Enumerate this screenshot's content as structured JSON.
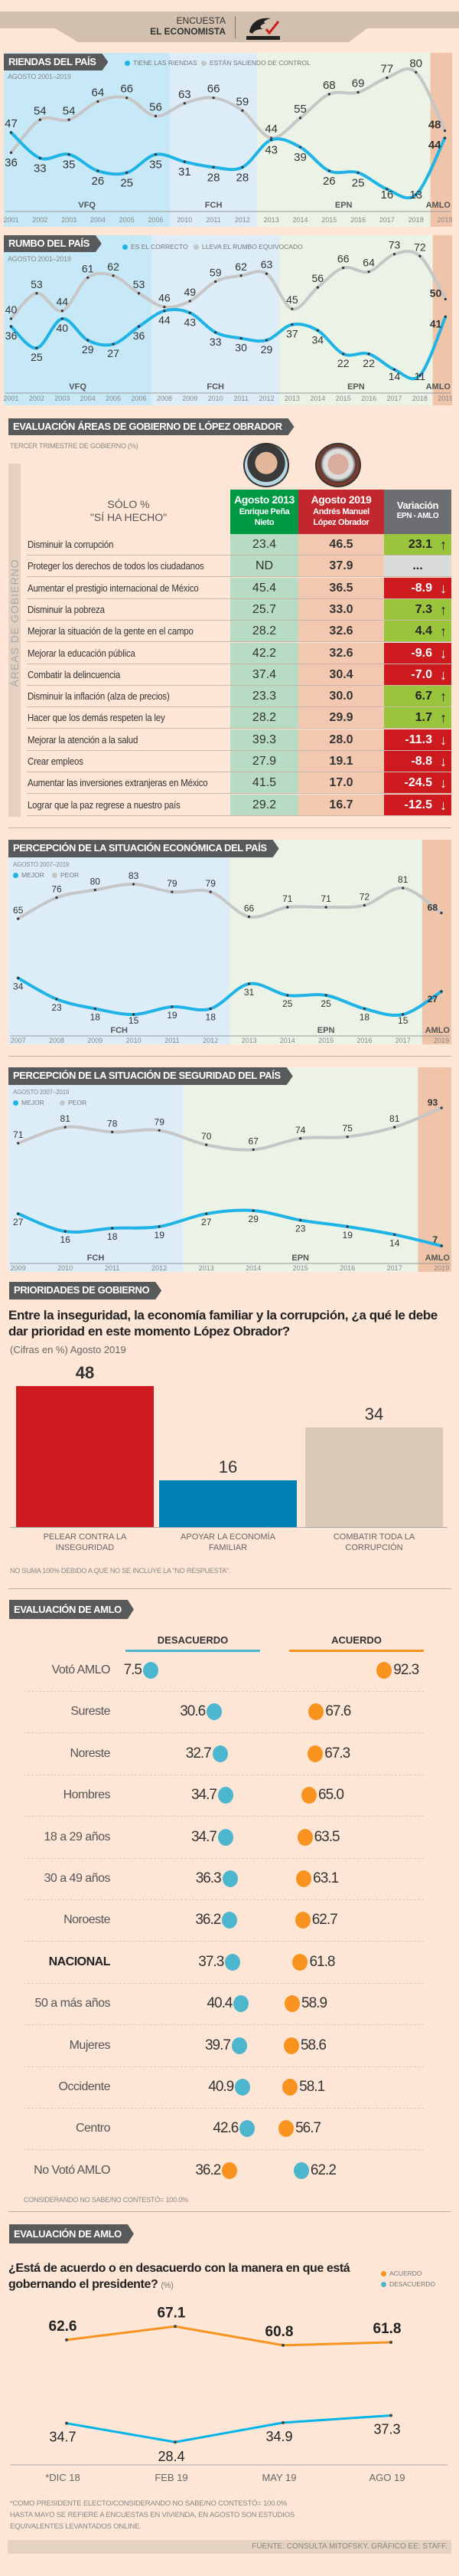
{
  "header": {
    "line1": "ENCUESTA",
    "line2": "EL ECONOMISTA",
    "logo_text": "CONSULTA MITOFSKY"
  },
  "colors": {
    "blue": "#1fb3e6",
    "grey": "#c6c6c6",
    "red": "#cc1a1f",
    "green": "#99c43c",
    "orange": "#f7931e",
    "dot_blue": "#4db6cf"
  },
  "chart_data": [
    {
      "type": "line",
      "title": "RIENDAS DEL PAÍS",
      "subtitle": "AGOSTO 2001–2019",
      "x": [
        "2001",
        "2002",
        "2003",
        "2004",
        "2005",
        "2006",
        "2010",
        "2011",
        "2012",
        "2013",
        "2014",
        "2015",
        "2016",
        "2017",
        "2018",
        "2019"
      ],
      "series": [
        {
          "name": "TIENE LAS RIENDAS",
          "color": "#1fb3e6",
          "values": [
            47,
            33,
            35,
            26,
            25,
            35,
            31,
            28,
            28,
            43,
            39,
            26,
            25,
            16,
            13,
            44
          ]
        },
        {
          "name": "ESTÁN SALIENDO DE CONTROL",
          "color": "#c6c6c6",
          "values": [
            36,
            54,
            54,
            64,
            66,
            56,
            63,
            66,
            59,
            44,
            55,
            68,
            69,
            77,
            80,
            48
          ]
        }
      ],
      "eras": [
        {
          "label": "VFQ",
          "from": "2001",
          "to": "2006",
          "color": "#c6e8f7"
        },
        {
          "label": "FCH",
          "from": "2010",
          "to": "2012",
          "color": "#dcedf8"
        },
        {
          "label": "EPN",
          "from": "2013",
          "to": "2018",
          "color": "#eaf3e6"
        },
        {
          "label": "AMLO",
          "from": "2019",
          "to": "2019",
          "color": "#f0c4a8"
        }
      ]
    },
    {
      "type": "line",
      "title": "RUMBO DEL PAÍS",
      "subtitle": "AGOSTO 2001–2019",
      "x": [
        "2001",
        "2002",
        "2003",
        "2004",
        "2005",
        "2006",
        "2008",
        "2009",
        "2010",
        "2011",
        "2012",
        "2013",
        "2014",
        "2015",
        "2016",
        "2017",
        "2018",
        "2019"
      ],
      "series": [
        {
          "name": "ES EL CORRECTO",
          "color": "#1fb3e6",
          "values": [
            36,
            25,
            40,
            29,
            27,
            36,
            44,
            43,
            33,
            30,
            29,
            37,
            34,
            22,
            22,
            14,
            11,
            41
          ]
        },
        {
          "name": "LLEVA EL RUMBO EQUIVOCADO",
          "color": "#c6c6c6",
          "values": [
            40,
            53,
            44,
            61,
            62,
            53,
            46,
            49,
            59,
            62,
            63,
            45,
            56,
            66,
            64,
            73,
            72,
            50
          ]
        }
      ],
      "eras": [
        {
          "label": "VFQ",
          "from": "2001",
          "to": "2006",
          "color": "#c6e8f7"
        },
        {
          "label": "FCH",
          "from": "2008",
          "to": "2012",
          "color": "#dcedf8"
        },
        {
          "label": "EPN",
          "from": "2013",
          "to": "2018",
          "color": "#eaf3e6"
        },
        {
          "label": "AMLO",
          "from": "2019",
          "to": "2019",
          "color": "#f0c4a8"
        }
      ]
    },
    {
      "type": "line",
      "title": "PERCEPCIÓN DE LA SITUACIÓN ECONÓMICA DEL PAÍS",
      "subtitle": "AGOSTO 2007–2019",
      "x": [
        "2007",
        "2008",
        "2009",
        "2010",
        "2011",
        "2012",
        "2013",
        "2014",
        "2015",
        "2016",
        "2017",
        "2019"
      ],
      "series": [
        {
          "name": "MEJOR",
          "color": "#1fb3e6",
          "values": [
            34,
            23,
            18,
            15,
            19,
            18,
            31,
            25,
            25,
            18,
            15,
            27
          ]
        },
        {
          "name": "PEOR",
          "color": "#c6c6c6",
          "values": [
            65,
            76,
            80,
            83,
            79,
            79,
            66,
            71,
            71,
            72,
            81,
            68
          ]
        }
      ],
      "eras": [
        {
          "label": "FCH",
          "from": "2007",
          "to": "2012",
          "color": "#dcedf8"
        },
        {
          "label": "EPN",
          "from": "2013",
          "to": "2017",
          "color": "#eaf3e6"
        },
        {
          "label": "AMLO",
          "from": "2019",
          "to": "2019",
          "color": "#f0c4a8"
        }
      ]
    },
    {
      "type": "line",
      "title": "PERCEPCIÓN DE LA SITUACIÓN DE SEGURIDAD DEL PAÍS",
      "subtitle": "AGOSTO 2007–2019",
      "x": [
        "2009",
        "2010",
        "2011",
        "2012",
        "2013",
        "2014",
        "2015",
        "2016",
        "2017",
        "2019"
      ],
      "series": [
        {
          "name": "MEJOR",
          "color": "#1fb3e6",
          "values": [
            27,
            16,
            18,
            19,
            27,
            29,
            23,
            19,
            14,
            7
          ]
        },
        {
          "name": "PEOR",
          "color": "#c6c6c6",
          "values": [
            71,
            81,
            78,
            79,
            70,
            67,
            74,
            75,
            81,
            93
          ]
        }
      ],
      "eras": [
        {
          "label": "FCH",
          "from": "2009",
          "to": "2012",
          "color": "#dcedf8"
        },
        {
          "label": "EPN",
          "from": "2013",
          "to": "2017",
          "color": "#eaf3e6"
        },
        {
          "label": "AMLO",
          "from": "2019",
          "to": "2019",
          "color": "#f0c4a8"
        }
      ]
    },
    {
      "type": "bar",
      "title": "PRIORIDADES DE GOBIERNO",
      "question": "Entre la inseguridad, la economía familiar y la corrupción, ¿a qué le debe dar prioridad en este momento López Obrador?",
      "subtitle": "(Cifras en %) Agosto 2019",
      "categories": [
        "PELEAR CONTRA LA INSEGURIDAD",
        "APOYAR LA ECONOMÍA FAMILIAR",
        "COMBATIR TODA LA CORRUPCIÓN"
      ],
      "values": [
        48,
        16,
        34
      ],
      "colors": [
        "#cc1a1f",
        "#0081b4",
        "#d9c8b6"
      ],
      "note": "NO SUMA 100% DEBIDO A QUE NO SE INCLUYE LA \"NO RESPUESTA\"."
    },
    {
      "type": "line",
      "title": "EVALUACIÓN DE AMLO",
      "question": "¿Está de acuerdo o en desacuerdo con la manera en que está gobernando el presidente?",
      "unit": "(%)",
      "x": [
        "*DIC 18",
        "FEB 19",
        "MAY 19",
        "AGO 19"
      ],
      "series": [
        {
          "name": "ACUERDO",
          "color": "#f7931e",
          "values": [
            62.6,
            67.1,
            60.8,
            61.8
          ]
        },
        {
          "name": "DESACUERDO",
          "color": "#1fb3e6",
          "values": [
            34.7,
            28.4,
            34.9,
            37.3
          ]
        }
      ],
      "notes": [
        "*COMO PRESIDENTE ELECTO/CONSIDERANDO NO SABE/NO CONTESTÓ= 100.0%",
        "HASTA MAYO SE REFIERE A ENCUESTAS EN VIVIENDA, EN AGOSTO SON ESTUDIOS",
        "EQUIVALENTES LEVANTADOS ONLINE."
      ]
    }
  ],
  "areas": {
    "title": "EVALUACIÓN ÁREAS DE GOBIERNO DE LÓPEZ OBRADOR",
    "subtitle": "TERCER TRIMESTRE DE GOBIERNO (%)",
    "side_label": "ÁREAS DE GOBIERNO",
    "col0": {
      "line1": "SÓLO %",
      "line2": "\"SÍ HA HECHO\""
    },
    "col1": {
      "line1": "Agosto 2013",
      "line2": "Enrique Peña",
      "line3": "Nieto"
    },
    "col2": {
      "line1": "Agosto 2019",
      "line2": "Andrés Manuel",
      "line3": "López Obrador"
    },
    "col3": {
      "line1": "Variación",
      "line2": "EPN - AMLO"
    },
    "rows": [
      {
        "area": "Disminuir la corrupción",
        "epn": "23.4",
        "amlo": "46.5",
        "var": "23.1",
        "trend": "up"
      },
      {
        "area": "Proteger los derechos de todos los ciudadanos",
        "epn": "ND",
        "amlo": "37.9",
        "var": "...",
        "trend": "none"
      },
      {
        "area": "Aumentar el prestigio internacional de México",
        "epn": "45.4",
        "amlo": "36.5",
        "var": "-8.9",
        "trend": "down"
      },
      {
        "area": "Disminuir la pobreza",
        "epn": "25.7",
        "amlo": "33.0",
        "var": "7.3",
        "trend": "up"
      },
      {
        "area": "Mejorar la situación de la gente en el campo",
        "epn": "28.2",
        "amlo": "32.6",
        "var": "4.4",
        "trend": "up"
      },
      {
        "area": "Mejorar la educación pública",
        "epn": "42.2",
        "amlo": "32.6",
        "var": "-9.6",
        "trend": "down"
      },
      {
        "area": "Combatir la delincuencia",
        "epn": "37.4",
        "amlo": "30.4",
        "var": "-7.0",
        "trend": "down"
      },
      {
        "area": "Disminuir la inflación (alza de precios)",
        "epn": "23.3",
        "amlo": "30.0",
        "var": "6.7",
        "trend": "up"
      },
      {
        "area": "Hacer que los demás respeten la ley",
        "epn": "28.2",
        "amlo": "29.9",
        "var": "1.7",
        "trend": "up"
      },
      {
        "area": "Mejorar la atención a la salud",
        "epn": "39.3",
        "amlo": "28.0",
        "var": "-11.3",
        "trend": "down"
      },
      {
        "area": "Crear empleos",
        "epn": "27.9",
        "amlo": "19.1",
        "var": "-8.8",
        "trend": "down"
      },
      {
        "area": "Aumentar las inversiones extranjeras en México",
        "epn": "41.5",
        "amlo": "17.0",
        "var": "-24.5",
        "trend": "down"
      },
      {
        "area": "Lograr que la paz regrese a nuestro país",
        "epn": "29.2",
        "amlo": "16.7",
        "var": "-12.5",
        "trend": "down"
      }
    ]
  },
  "evaluation": {
    "title": "EVALUACIÓN DE AMLO",
    "col_disagree": "DESACUERDO",
    "col_agree": "ACUERDO",
    "rows": [
      {
        "label": "Votó AMLO",
        "desacuerdo": 7.5,
        "acuerdo": 92.3
      },
      {
        "label": "Sureste",
        "desacuerdo": 30.6,
        "acuerdo": 67.6
      },
      {
        "label": "Noreste",
        "desacuerdo": 32.7,
        "acuerdo": 67.3
      },
      {
        "label": "Hombres",
        "desacuerdo": 34.7,
        "acuerdo": 65.0
      },
      {
        "label": "18 a 29 años",
        "desacuerdo": 34.7,
        "acuerdo": 63.5
      },
      {
        "label": "30 a 49 años",
        "desacuerdo": 36.3,
        "acuerdo": 63.1
      },
      {
        "label": "Noroeste",
        "desacuerdo": 36.2,
        "acuerdo": 62.7
      },
      {
        "label": "NACIONAL",
        "desacuerdo": 37.3,
        "acuerdo": 61.8,
        "bold": true
      },
      {
        "label": "50 a más años",
        "desacuerdo": 40.4,
        "acuerdo": 58.9
      },
      {
        "label": "Mujeres",
        "desacuerdo": 39.7,
        "acuerdo": 58.6
      },
      {
        "label": "Occidente",
        "desacuerdo": 40.9,
        "acuerdo": 58.1
      },
      {
        "label": "Centro",
        "desacuerdo": 42.6,
        "acuerdo": 56.7
      },
      {
        "label": "No Votó AMLO",
        "desacuerdo": 36.2,
        "acuerdo": 62.2,
        "colors_swapped": true
      }
    ],
    "note": "CONSIDERANDO NO SABE/NO CONTESTÓ= 100.0%"
  },
  "footer": {
    "source": "FUENTE: CONSULTA MITOFSKY. GRÁFICO EE: STAFF."
  }
}
